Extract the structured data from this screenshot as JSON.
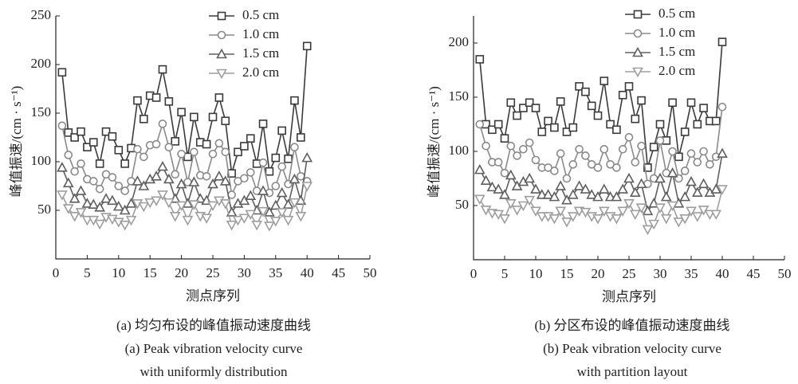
{
  "chart_data": [
    {
      "type": "line",
      "xlabel": "测点序列",
      "ylabel": "峰值振速/(cm · s⁻¹)",
      "caption": [
        "(a) 均匀布设的峰值振动速度曲线",
        "(a) Peak vibration velocity curve",
        "with uniformly distribution"
      ],
      "x": [
        1,
        2,
        3,
        4,
        5,
        6,
        7,
        8,
        9,
        10,
        11,
        12,
        13,
        14,
        15,
        16,
        17,
        18,
        19,
        20,
        21,
        22,
        23,
        24,
        25,
        26,
        27,
        28,
        29,
        30,
        31,
        32,
        33,
        34,
        35,
        36,
        37,
        38,
        39,
        40
      ],
      "xlim": [
        0,
        50
      ],
      "ylim": [
        0,
        250
      ],
      "xticks": [
        0,
        5,
        10,
        15,
        20,
        25,
        30,
        35,
        40,
        45,
        50
      ],
      "yticks": [
        50,
        100,
        150,
        200,
        250
      ],
      "legend": "upper right",
      "series": [
        {
          "name": "0.5 cm",
          "color": "#3a3a3a",
          "marker": "square",
          "values": [
            192,
            130,
            125,
            131,
            115,
            120,
            98,
            131,
            126,
            112,
            98,
            114,
            163,
            144,
            168,
            166,
            195,
            162,
            121,
            151,
            105,
            146,
            120,
            118,
            146,
            166,
            142,
            88,
            110,
            116,
            124,
            98,
            139,
            90,
            104,
            132,
            103,
            163,
            125,
            219
          ]
        },
        {
          "name": "1.0 cm",
          "color": "#8a8a8a",
          "marker": "circle",
          "values": [
            137,
            107,
            90,
            98,
            82,
            80,
            72,
            87,
            84,
            75,
            70,
            80,
            113,
            105,
            117,
            118,
            139,
            115,
            87,
            108,
            79,
            110,
            86,
            85,
            108,
            119,
            110,
            66,
            80,
            83,
            89,
            70,
            99,
            68,
            75,
            95,
            77,
            115,
            85,
            80
          ]
        },
        {
          "name": "1.5 cm",
          "color": "#5e5e5e",
          "marker": "triangle-up",
          "values": [
            94,
            78,
            62,
            70,
            57,
            56,
            53,
            62,
            60,
            54,
            50,
            57,
            80,
            75,
            82,
            85,
            95,
            82,
            62,
            77,
            57,
            79,
            62,
            60,
            77,
            85,
            80,
            48,
            57,
            60,
            65,
            50,
            70,
            48,
            55,
            68,
            56,
            82,
            60,
            104
          ]
        },
        {
          "name": "2.0 cm",
          "color": "#9e9e9e",
          "marker": "triangle-down",
          "values": [
            66,
            52,
            44,
            48,
            40,
            40,
            36,
            43,
            41,
            38,
            35,
            40,
            57,
            54,
            58,
            60,
            66,
            58,
            44,
            55,
            40,
            56,
            44,
            42,
            55,
            60,
            57,
            35,
            40,
            42,
            46,
            35,
            49,
            34,
            39,
            48,
            40,
            58,
            44,
            75
          ]
        }
      ]
    },
    {
      "type": "line",
      "xlabel": "测点序列",
      "ylabel": "峰值振速/(cm · s⁻¹)",
      "caption": [
        "(b) 分区布设的峰值振动速度曲线",
        "(b) Peak vibration velocity curve",
        "with partition layout"
      ],
      "x": [
        1,
        2,
        3,
        4,
        5,
        6,
        7,
        8,
        9,
        10,
        11,
        12,
        13,
        14,
        15,
        16,
        17,
        18,
        19,
        20,
        21,
        22,
        23,
        24,
        25,
        26,
        27,
        28,
        29,
        30,
        31,
        32,
        33,
        34,
        35,
        36,
        37,
        38,
        39,
        40
      ],
      "xlim": [
        0,
        50
      ],
      "ylim": [
        0,
        225
      ],
      "xticks": [
        0,
        5,
        10,
        15,
        20,
        25,
        30,
        35,
        40,
        45,
        50
      ],
      "yticks": [
        50,
        100,
        150,
        200
      ],
      "legend": "upper right",
      "series": [
        {
          "name": "0.5 cm",
          "color": "#3a3a3a",
          "marker": "square",
          "values": [
            185,
            125,
            120,
            125,
            112,
            145,
            133,
            140,
            145,
            140,
            118,
            128,
            122,
            146,
            118,
            122,
            160,
            155,
            142,
            133,
            165,
            125,
            120,
            152,
            160,
            130,
            147,
            85,
            104,
            125,
            110,
            145,
            95,
            118,
            145,
            125,
            140,
            128,
            128,
            201
          ]
        },
        {
          "name": "1.0 cm",
          "color": "#8a8a8a",
          "marker": "circle",
          "values": [
            125,
            105,
            90,
            90,
            80,
            105,
            96,
            102,
            108,
            92,
            85,
            85,
            82,
            98,
            75,
            88,
            102,
            96,
            88,
            85,
            102,
            88,
            85,
            102,
            113,
            90,
            105,
            70,
            75,
            110,
            80,
            100,
            75,
            82,
            98,
            90,
            100,
            88,
            95,
            141
          ]
        },
        {
          "name": "1.5 cm",
          "color": "#5e5e5e",
          "marker": "triangle-up",
          "values": [
            83,
            73,
            67,
            65,
            60,
            78,
            68,
            72,
            75,
            65,
            60,
            60,
            58,
            68,
            55,
            60,
            68,
            65,
            60,
            58,
            65,
            58,
            58,
            65,
            75,
            62,
            70,
            45,
            52,
            75,
            58,
            80,
            52,
            58,
            72,
            62,
            70,
            62,
            65,
            98
          ]
        },
        {
          "name": "2.0 cm",
          "color": "#9e9e9e",
          "marker": "triangle-down",
          "values": [
            56,
            46,
            43,
            42,
            38,
            52,
            46,
            50,
            55,
            45,
            40,
            40,
            38,
            45,
            35,
            40,
            45,
            44,
            40,
            38,
            45,
            40,
            38,
            45,
            52,
            42,
            48,
            28,
            33,
            48,
            38,
            50,
            35,
            38,
            45,
            40,
            46,
            42,
            42,
            65
          ]
        }
      ]
    }
  ]
}
